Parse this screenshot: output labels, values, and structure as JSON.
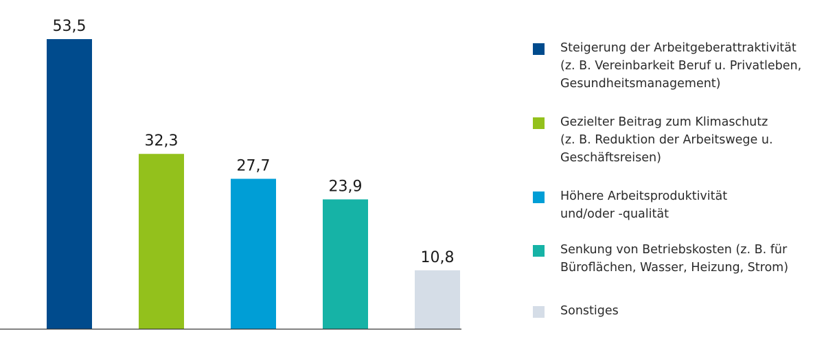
{
  "chart_data": {
    "type": "bar",
    "categories": [
      "Steigerung der Arbeitgeberattraktivität (z. B. Vereinbarkeit Beruf u. Privatleben, Gesundheitsmanagement)",
      "Gezielter Beitrag zum Klimaschutz (z. B. Reduktion der Arbeitswege u. Geschäftsreisen)",
      "Höhere Arbeitsproduktivität und/oder -qualität",
      "Senkung von Betriebskosten (z. B. für Büroflächen, Wasser, Heizung, Strom)",
      "Sonstiges"
    ],
    "values": [
      53.5,
      32.3,
      27.7,
      23.9,
      10.8
    ],
    "value_labels": [
      "53,5",
      "32,3",
      "27,7",
      "23,9",
      "10,8"
    ],
    "colors": [
      "#004b8d",
      "#93c11c",
      "#009ed6",
      "#16b3a6",
      "#d5dde7"
    ],
    "ylim": [
      0,
      60
    ],
    "grid": false,
    "legend_position": "right",
    "legend": [
      {
        "lines": [
          "Steigerung der Arbeitgeberattraktivität",
          "(z. B. Vereinbarkeit Beruf u. Privatleben,",
          "Gesundheitsmanagement)"
        ]
      },
      {
        "lines": [
          "Gezielter Beitrag zum Klimaschutz",
          "(z. B. Reduktion der Arbeitswege u.",
          "Geschäftsreisen)"
        ]
      },
      {
        "lines": [
          "Höhere Arbeitsproduktivität",
          "und/oder -qualität"
        ]
      },
      {
        "lines": [
          "Senkung von Betriebskosten (z. B. für",
          "Büroflächen, Wasser, Heizung, Strom)"
        ]
      },
      {
        "lines": [
          "Sonstiges"
        ]
      }
    ]
  }
}
